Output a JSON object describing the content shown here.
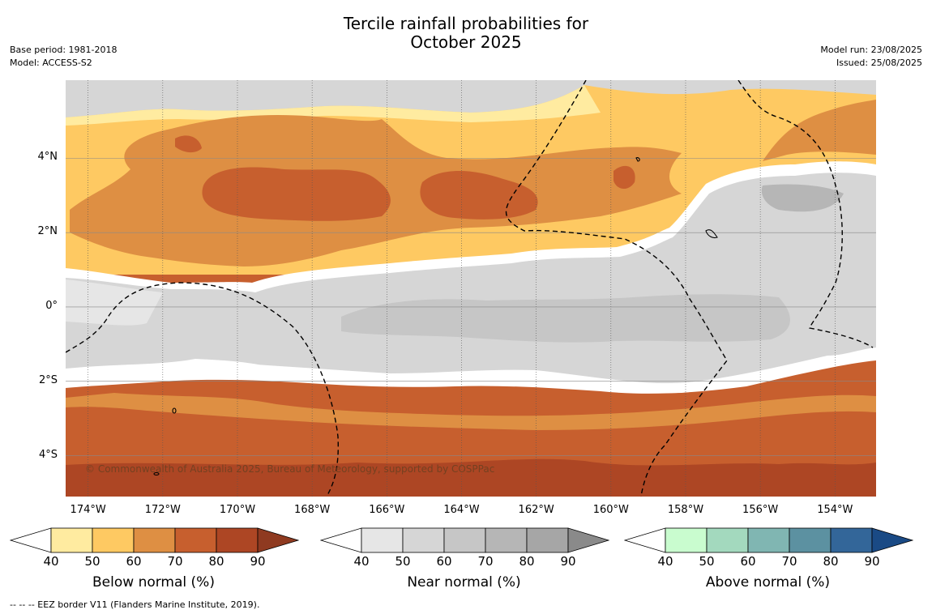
{
  "title": {
    "line1": "Tercile rainfall probabilities for",
    "line2": "October 2025"
  },
  "meta_left": {
    "base_period": "Base period: 1981-2018",
    "model": "Model: ACCESS-S2"
  },
  "meta_right": {
    "model_run": "Model run: 23/08/2025",
    "issued": "Issued: 25/08/2025"
  },
  "map": {
    "credit": "© Commonwealth of Australia 2025, Bureau of Meteorology, supported by COSPPac",
    "lat_labels": [
      "4°N",
      "2°N",
      "0°",
      "2°S",
      "4°S"
    ],
    "lon_labels": [
      "174°W",
      "172°W",
      "170°W",
      "168°W",
      "166°W",
      "164°W",
      "162°W",
      "160°W",
      "158°W",
      "156°W",
      "154°W"
    ],
    "extent": {
      "lon_min": -174.6,
      "lon_max": -152.9,
      "lat_min": -5.1,
      "lat_max": 6.1
    }
  },
  "colorbars": [
    {
      "title": "Below normal (%)",
      "ticks": [
        "40",
        "50",
        "60",
        "70",
        "80",
        "90"
      ],
      "colors": [
        "#ffeba0",
        "#fec962",
        "#de8f43",
        "#c75f2e",
        "#ad4624"
      ],
      "over": "#8f3a20"
    },
    {
      "title": "Near normal (%)",
      "ticks": [
        "40",
        "50",
        "60",
        "70",
        "80",
        "90"
      ],
      "colors": [
        "#e6e6e6",
        "#d6d6d6",
        "#c6c6c6",
        "#b6b6b6",
        "#a6a6a6"
      ],
      "over": "#8a8a8a"
    },
    {
      "title": "Above normal (%)",
      "ticks": [
        "40",
        "50",
        "60",
        "70",
        "80",
        "90"
      ],
      "colors": [
        "#c9fccf",
        "#a3d9be",
        "#80b6b2",
        "#5c91a1",
        "#336699"
      ],
      "over": "#1a4a85"
    }
  ],
  "footer": "--  --  -- EEZ border V11 (Flanders Marine Institute, 2019)."
}
